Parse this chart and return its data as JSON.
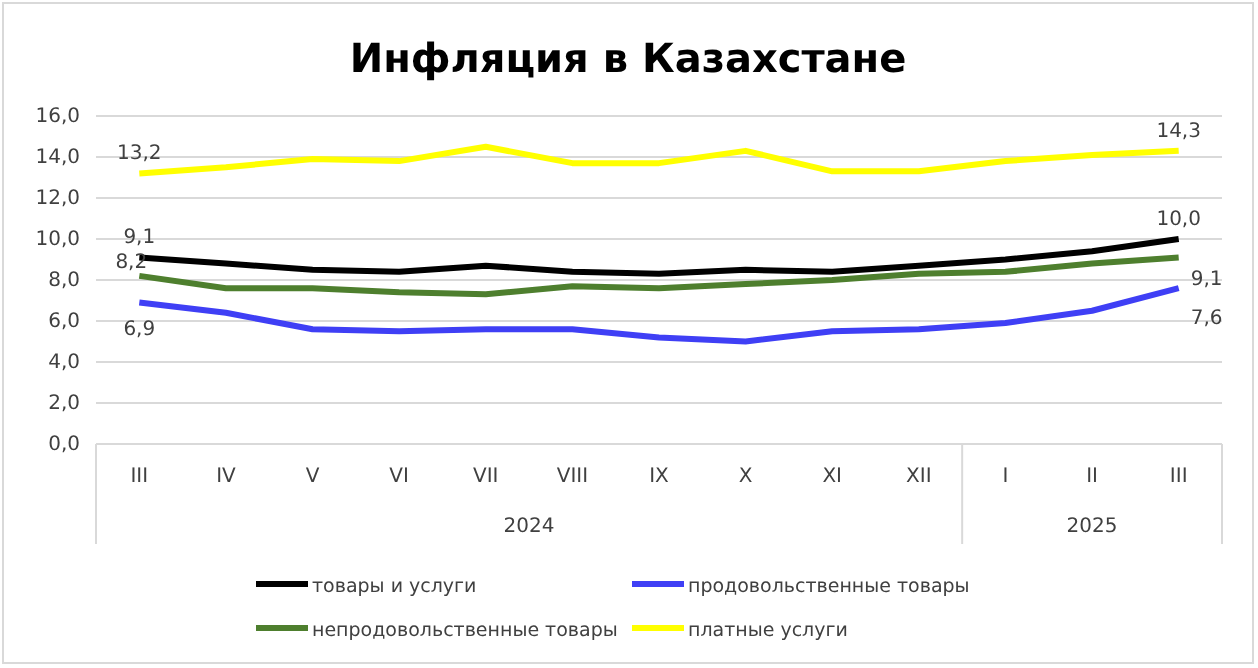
{
  "chart_data": {
    "type": "line",
    "title": "Инфляция в Казахстане",
    "categories": [
      "III",
      "IV",
      "V",
      "VI",
      "VII",
      "VIII",
      "IX",
      "X",
      "XI",
      "XII",
      "I",
      "II",
      "III"
    ],
    "series": [
      {
        "name": "товары и услуги",
        "color": "#000000",
        "values": [
          9.1,
          8.8,
          8.5,
          8.4,
          8.7,
          8.4,
          8.3,
          8.5,
          8.4,
          8.7,
          9.0,
          9.4,
          10.0
        ],
        "value_labels": [
          "9,1",
          null,
          null,
          null,
          null,
          null,
          null,
          null,
          null,
          null,
          null,
          null,
          "10,0"
        ]
      },
      {
        "name": "продовольственные товары",
        "color": "#3f3ff5",
        "values": [
          6.9,
          6.4,
          5.6,
          5.5,
          5.6,
          5.6,
          5.2,
          5.0,
          5.5,
          5.6,
          5.9,
          6.5,
          7.6
        ],
        "value_labels": [
          "6,9",
          null,
          null,
          null,
          null,
          null,
          null,
          null,
          null,
          null,
          null,
          null,
          "7,6"
        ]
      },
      {
        "name": "непродовольственные товары",
        "color": "#4e7f2e",
        "values": [
          8.2,
          7.6,
          7.6,
          7.4,
          7.3,
          7.7,
          7.6,
          7.8,
          8.0,
          8.3,
          8.4,
          8.8,
          9.1
        ],
        "value_labels": [
          "8,2",
          null,
          null,
          null,
          null,
          null,
          null,
          null,
          null,
          null,
          null,
          null,
          "9,1"
        ]
      },
      {
        "name": "платные услуги",
        "color": "#ffff00",
        "values": [
          13.2,
          13.5,
          13.9,
          13.8,
          14.5,
          13.7,
          13.7,
          14.3,
          13.3,
          13.3,
          13.8,
          14.1,
          14.3
        ],
        "value_labels": [
          "13,2",
          null,
          null,
          null,
          null,
          null,
          null,
          null,
          null,
          null,
          null,
          null,
          "14,3"
        ]
      }
    ],
    "ylim": [
      0,
      16
    ],
    "yticks": [
      {
        "value": 0,
        "label": "0,0"
      },
      {
        "value": 2,
        "label": "2,0"
      },
      {
        "value": 4,
        "label": "4,0"
      },
      {
        "value": 6,
        "label": "6,0"
      },
      {
        "value": 8,
        "label": "8,0"
      },
      {
        "value": 10,
        "label": "10,0"
      },
      {
        "value": 12,
        "label": "12,0"
      },
      {
        "value": 14,
        "label": "14,0"
      },
      {
        "value": 16,
        "label": "16,0"
      }
    ],
    "grid": "y",
    "legend": "bottom",
    "marker": "none",
    "line_style": "solid",
    "annotations": [
      "2024",
      "2025"
    ]
  }
}
